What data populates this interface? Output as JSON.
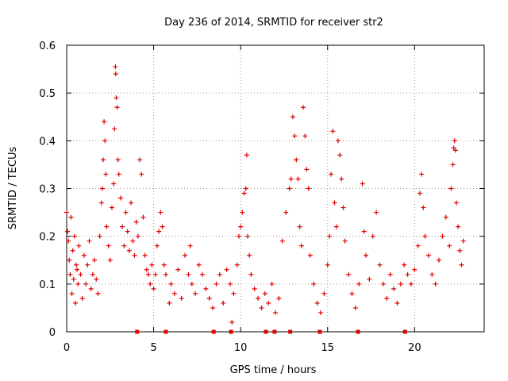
{
  "chart_data": {
    "type": "scatter",
    "title": "Day 236 of 2014, SRMTID for receiver str2",
    "xlabel": "GPS time / hours",
    "ylabel": "SRMTID / TECUs",
    "xlim": [
      0,
      24
    ],
    "ylim": [
      0,
      0.6
    ],
    "x_ticks": [
      0,
      5,
      10,
      15,
      20
    ],
    "x_tick_labels": [
      "0",
      "5",
      "10",
      "15",
      "20"
    ],
    "y_ticks": [
      0,
      0.1,
      0.2,
      0.3,
      0.4,
      0.5,
      0.6
    ],
    "y_tick_labels": [
      "0",
      "0.1",
      "0.2",
      "0.3",
      "0.4",
      "0.5",
      "0.6"
    ],
    "grid": true,
    "marker": "+",
    "series": [
      {
        "name": "str2",
        "color": "#e00000",
        "points": [
          [
            0.0,
            0.25
          ],
          [
            0.05,
            0.21
          ],
          [
            0.1,
            0.19
          ],
          [
            0.15,
            0.15
          ],
          [
            0.2,
            0.12
          ],
          [
            0.25,
            0.24
          ],
          [
            0.3,
            0.08
          ],
          [
            0.35,
            0.17
          ],
          [
            0.4,
            0.11
          ],
          [
            0.45,
            0.2
          ],
          [
            0.5,
            0.06
          ],
          [
            0.55,
            0.14
          ],
          [
            0.6,
            0.13
          ],
          [
            0.65,
            0.1
          ],
          [
            0.7,
            0.18
          ],
          [
            0.8,
            0.12
          ],
          [
            0.9,
            0.07
          ],
          [
            1.0,
            0.16
          ],
          [
            1.1,
            0.1
          ],
          [
            1.2,
            0.14
          ],
          [
            1.3,
            0.19
          ],
          [
            1.4,
            0.09
          ],
          [
            1.5,
            0.12
          ],
          [
            1.6,
            0.15
          ],
          [
            1.7,
            0.11
          ],
          [
            1.8,
            0.08
          ],
          [
            1.9,
            0.2
          ],
          [
            2.0,
            0.27
          ],
          [
            2.05,
            0.3
          ],
          [
            2.1,
            0.36
          ],
          [
            2.15,
            0.44
          ],
          [
            2.2,
            0.4
          ],
          [
            2.25,
            0.33
          ],
          [
            2.3,
            0.22
          ],
          [
            2.4,
            0.18
          ],
          [
            2.5,
            0.15
          ],
          [
            2.6,
            0.26
          ],
          [
            2.7,
            0.31
          ],
          [
            2.75,
            0.425
          ],
          [
            2.8,
            0.555
          ],
          [
            2.82,
            0.54
          ],
          [
            2.85,
            0.49
          ],
          [
            2.9,
            0.47
          ],
          [
            2.95,
            0.36
          ],
          [
            3.0,
            0.33
          ],
          [
            3.1,
            0.28
          ],
          [
            3.2,
            0.22
          ],
          [
            3.3,
            0.18
          ],
          [
            3.4,
            0.25
          ],
          [
            3.5,
            0.21
          ],
          [
            3.6,
            0.17
          ],
          [
            3.7,
            0.27
          ],
          [
            3.8,
            0.19
          ],
          [
            3.9,
            0.16
          ],
          [
            4.0,
            0.23
          ],
          [
            4.1,
            0.2
          ],
          [
            4.2,
            0.36
          ],
          [
            4.3,
            0.33
          ],
          [
            4.4,
            0.24
          ],
          [
            4.5,
            0.16
          ],
          [
            4.6,
            0.13
          ],
          [
            4.7,
            0.12
          ],
          [
            4.8,
            0.1
          ],
          [
            4.9,
            0.14
          ],
          [
            5.0,
            0.09
          ],
          [
            5.1,
            0.12
          ],
          [
            5.2,
            0.18
          ],
          [
            5.3,
            0.21
          ],
          [
            5.4,
            0.25
          ],
          [
            5.5,
            0.22
          ],
          [
            5.6,
            0.14
          ],
          [
            5.7,
            0.12
          ],
          [
            5.9,
            0.06
          ],
          [
            6.0,
            0.1
          ],
          [
            6.2,
            0.08
          ],
          [
            6.4,
            0.13
          ],
          [
            6.6,
            0.07
          ],
          [
            6.8,
            0.16
          ],
          [
            7.0,
            0.12
          ],
          [
            7.1,
            0.18
          ],
          [
            7.2,
            0.1
          ],
          [
            7.4,
            0.08
          ],
          [
            7.6,
            0.14
          ],
          [
            7.8,
            0.12
          ],
          [
            8.0,
            0.09
          ],
          [
            8.2,
            0.07
          ],
          [
            8.4,
            0.05
          ],
          [
            8.6,
            0.1
          ],
          [
            8.8,
            0.12
          ],
          [
            9.0,
            0.06
          ],
          [
            9.2,
            0.13
          ],
          [
            9.4,
            0.1
          ],
          [
            9.5,
            0.02
          ],
          [
            9.6,
            0.08
          ],
          [
            9.8,
            0.14
          ],
          [
            9.9,
            0.2
          ],
          [
            10.0,
            0.22
          ],
          [
            10.1,
            0.25
          ],
          [
            10.2,
            0.29
          ],
          [
            10.3,
            0.3
          ],
          [
            10.35,
            0.37
          ],
          [
            10.4,
            0.2
          ],
          [
            10.5,
            0.16
          ],
          [
            10.6,
            0.12
          ],
          [
            10.8,
            0.09
          ],
          [
            11.0,
            0.07
          ],
          [
            11.2,
            0.05
          ],
          [
            11.4,
            0.08
          ],
          [
            11.6,
            0.06
          ],
          [
            11.8,
            0.1
          ],
          [
            12.0,
            0.04
          ],
          [
            12.2,
            0.07
          ],
          [
            12.4,
            0.19
          ],
          [
            12.6,
            0.25
          ],
          [
            12.8,
            0.3
          ],
          [
            12.9,
            0.32
          ],
          [
            13.0,
            0.45
          ],
          [
            13.1,
            0.41
          ],
          [
            13.2,
            0.36
          ],
          [
            13.3,
            0.32
          ],
          [
            13.4,
            0.22
          ],
          [
            13.5,
            0.18
          ],
          [
            13.6,
            0.47
          ],
          [
            13.7,
            0.41
          ],
          [
            13.8,
            0.34
          ],
          [
            13.9,
            0.3
          ],
          [
            14.0,
            0.16
          ],
          [
            14.2,
            0.1
          ],
          [
            14.4,
            0.06
          ],
          [
            14.6,
            0.04
          ],
          [
            14.8,
            0.08
          ],
          [
            15.0,
            0.14
          ],
          [
            15.1,
            0.2
          ],
          [
            15.2,
            0.33
          ],
          [
            15.3,
            0.42
          ],
          [
            15.4,
            0.27
          ],
          [
            15.5,
            0.22
          ],
          [
            15.6,
            0.4
          ],
          [
            15.7,
            0.37
          ],
          [
            15.8,
            0.32
          ],
          [
            15.9,
            0.26
          ],
          [
            16.0,
            0.19
          ],
          [
            16.2,
            0.12
          ],
          [
            16.4,
            0.08
          ],
          [
            16.6,
            0.05
          ],
          [
            16.8,
            0.1
          ],
          [
            17.0,
            0.31
          ],
          [
            17.1,
            0.21
          ],
          [
            17.2,
            0.16
          ],
          [
            17.4,
            0.11
          ],
          [
            17.6,
            0.2
          ],
          [
            17.8,
            0.25
          ],
          [
            18.0,
            0.14
          ],
          [
            18.2,
            0.1
          ],
          [
            18.4,
            0.07
          ],
          [
            18.6,
            0.12
          ],
          [
            18.8,
            0.09
          ],
          [
            19.0,
            0.06
          ],
          [
            19.2,
            0.1
          ],
          [
            19.4,
            0.14
          ],
          [
            19.6,
            0.12
          ],
          [
            19.8,
            0.1
          ],
          [
            20.0,
            0.13
          ],
          [
            20.2,
            0.18
          ],
          [
            20.3,
            0.29
          ],
          [
            20.4,
            0.33
          ],
          [
            20.5,
            0.26
          ],
          [
            20.6,
            0.2
          ],
          [
            20.8,
            0.16
          ],
          [
            21.0,
            0.12
          ],
          [
            21.2,
            0.1
          ],
          [
            21.4,
            0.15
          ],
          [
            21.6,
            0.2
          ],
          [
            21.8,
            0.24
          ],
          [
            22.0,
            0.18
          ],
          [
            22.1,
            0.3
          ],
          [
            22.2,
            0.35
          ],
          [
            22.25,
            0.385
          ],
          [
            22.3,
            0.4
          ],
          [
            22.35,
            0.38
          ],
          [
            22.4,
            0.27
          ],
          [
            22.5,
            0.22
          ],
          [
            22.6,
            0.17
          ],
          [
            22.7,
            0.14
          ],
          [
            22.8,
            0.19
          ]
        ]
      }
    ],
    "baseline_markers_x": [
      4.05,
      5.7,
      8.45,
      9.45,
      11.45,
      11.95,
      12.85,
      14.55,
      16.75,
      19.45
    ]
  }
}
